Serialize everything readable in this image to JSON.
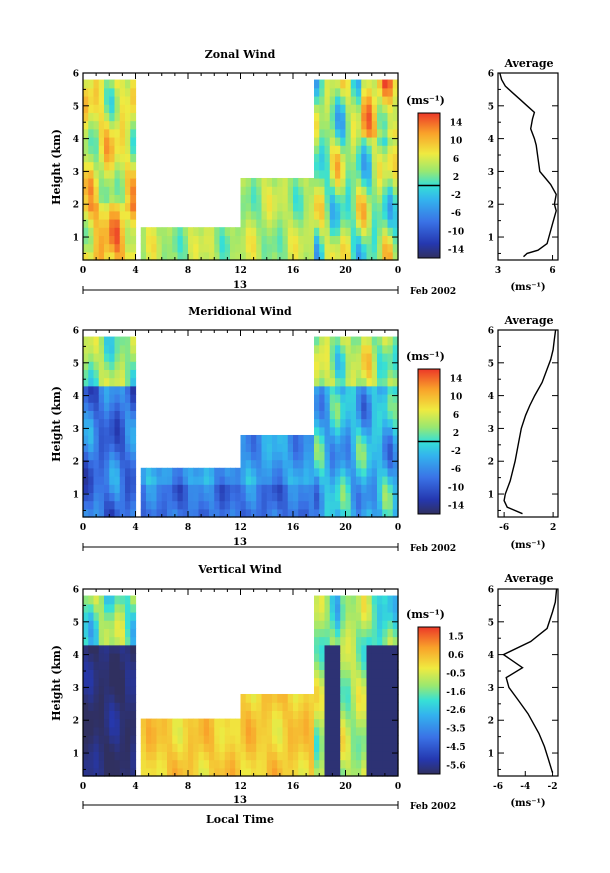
{
  "figure": {
    "xaxis_label": "Local Time",
    "date_label": "13",
    "month_label": "Feb 2002",
    "x_ticks": [
      "0",
      "4",
      "8",
      "12",
      "16",
      "20",
      "0"
    ],
    "y_ticks": [
      "1",
      "2",
      "3",
      "4",
      "5",
      "6"
    ]
  },
  "chart_data": [
    {
      "type": "heatmap",
      "title": "Zonal Wind",
      "ylabel": "Height (km)",
      "xlabel": "",
      "xlim": [
        0,
        24
      ],
      "ylim": [
        0.3,
        6
      ],
      "colorbar": {
        "unit": "(ms⁻¹)",
        "tick_labels": [
          "14",
          "10",
          "6",
          "2",
          "-2",
          "-6",
          "-10",
          "-14"
        ],
        "range": [
          -16,
          16
        ],
        "contour_mark": 0
      },
      "data_coverage": [
        {
          "x": [
            0,
            3.8
          ],
          "y": [
            0.3,
            5.8
          ]
        },
        {
          "x": [
            4.5,
            8
          ],
          "y": [
            0.3,
            1.4
          ]
        },
        {
          "x": [
            8,
            12
          ],
          "y": [
            0.3,
            1.4
          ]
        },
        {
          "x": [
            12,
            17.6
          ],
          "y": [
            0.3,
            2.8
          ]
        },
        {
          "x": [
            17.6,
            24
          ],
          "y": [
            0.3,
            5.8
          ]
        }
      ],
      "average_profile": {
        "title": "Average",
        "xlabel": "(ms⁻¹)",
        "x_ticks": [
          "3",
          "6"
        ],
        "xlim": [
          3,
          6.3
        ],
        "ylim": [
          0.3,
          6
        ],
        "points": [
          [
            4.4,
            0.4
          ],
          [
            4.6,
            0.5
          ],
          [
            5.2,
            0.6
          ],
          [
            5.7,
            0.8
          ],
          [
            5.8,
            1.0
          ],
          [
            6.0,
            1.4
          ],
          [
            6.2,
            1.8
          ],
          [
            6.1,
            2.0
          ],
          [
            6.2,
            2.3
          ],
          [
            5.9,
            2.6
          ],
          [
            5.6,
            2.8
          ],
          [
            5.3,
            3.0
          ],
          [
            5.2,
            3.4
          ],
          [
            5.1,
            3.8
          ],
          [
            5.0,
            4.0
          ],
          [
            4.8,
            4.3
          ],
          [
            4.9,
            4.6
          ],
          [
            5.0,
            4.8
          ],
          [
            4.6,
            5.0
          ],
          [
            4.2,
            5.2
          ],
          [
            3.8,
            5.4
          ],
          [
            3.4,
            5.6
          ],
          [
            3.2,
            5.8
          ],
          [
            3.1,
            6.0
          ]
        ]
      }
    },
    {
      "type": "heatmap",
      "title": "Meridional Wind",
      "ylabel": "Height (km)",
      "xlabel": "",
      "xlim": [
        0,
        24
      ],
      "ylim": [
        0.3,
        6
      ],
      "colorbar": {
        "unit": "(ms⁻¹)",
        "tick_labels": [
          "14",
          "10",
          "6",
          "2",
          "-2",
          "-6",
          "-10",
          "-14"
        ],
        "range": [
          -16,
          16
        ],
        "contour_mark": 0
      },
      "data_coverage": [
        {
          "x": [
            0,
            3.8
          ],
          "y": [
            0.3,
            5.8
          ]
        },
        {
          "x": [
            4.5,
            12
          ],
          "y": [
            0.3,
            1.8
          ]
        },
        {
          "x": [
            12,
            17.6
          ],
          "y": [
            0.3,
            2.8
          ]
        },
        {
          "x": [
            17.6,
            24
          ],
          "y": [
            0.3,
            5.8
          ]
        }
      ],
      "average_profile": {
        "title": "Average",
        "xlabel": "(ms⁻¹)",
        "x_ticks": [
          "-6",
          "2"
        ],
        "xlim": [
          -7,
          2.8
        ],
        "ylim": [
          0.3,
          6
        ],
        "points": [
          [
            -3.0,
            0.4
          ],
          [
            -5.5,
            0.6
          ],
          [
            -6.0,
            0.8
          ],
          [
            -5.8,
            1.0
          ],
          [
            -5.0,
            1.4
          ],
          [
            -4.2,
            2.0
          ],
          [
            -3.6,
            2.6
          ],
          [
            -3.2,
            3.0
          ],
          [
            -2.5,
            3.4
          ],
          [
            -1.8,
            3.7
          ],
          [
            -1.0,
            4.0
          ],
          [
            0.2,
            4.4
          ],
          [
            1.0,
            4.8
          ],
          [
            1.6,
            5.1
          ],
          [
            2.0,
            5.4
          ],
          [
            2.2,
            5.7
          ],
          [
            2.4,
            6.0
          ]
        ]
      }
    },
    {
      "type": "heatmap",
      "title": "Vertical Wind",
      "ylabel": "Height (km)",
      "xlabel": "Local Time",
      "xlim": [
        0,
        24
      ],
      "ylim": [
        0.3,
        6
      ],
      "colorbar": {
        "unit": "(ms⁻¹)",
        "tick_labels": [
          "1.5",
          "0.6",
          "-0.5",
          "-1.6",
          "-2.6",
          "-3.5",
          "-4.5",
          "-5.6"
        ],
        "range": [
          -6.0,
          2.0
        ],
        "contour_mark": null
      },
      "data_coverage": [
        {
          "x": [
            0,
            3.8
          ],
          "y": [
            0.3,
            5.8
          ]
        },
        {
          "x": [
            4.5,
            12
          ],
          "y": [
            0.3,
            2.0
          ]
        },
        {
          "x": [
            12,
            17.6
          ],
          "y": [
            0.3,
            2.8
          ]
        },
        {
          "x": [
            17.6,
            24
          ],
          "y": [
            0.3,
            5.8
          ]
        }
      ],
      "average_profile": {
        "title": "Average",
        "xlabel": "(ms⁻¹)",
        "x_ticks": [
          "-6",
          "-4",
          "-2"
        ],
        "xlim": [
          -6,
          -1.6
        ],
        "ylim": [
          0.3,
          6
        ],
        "points": [
          [
            -2.0,
            0.4
          ],
          [
            -2.3,
            0.8
          ],
          [
            -2.6,
            1.2
          ],
          [
            -3.0,
            1.6
          ],
          [
            -3.8,
            2.2
          ],
          [
            -4.5,
            2.6
          ],
          [
            -5.2,
            3.0
          ],
          [
            -5.4,
            3.3
          ],
          [
            -4.2,
            3.6
          ],
          [
            -5.6,
            4.0
          ],
          [
            -3.6,
            4.4
          ],
          [
            -2.4,
            4.8
          ],
          [
            -2.0,
            5.3
          ],
          [
            -1.8,
            5.6
          ],
          [
            -1.7,
            6.0
          ]
        ]
      }
    }
  ]
}
